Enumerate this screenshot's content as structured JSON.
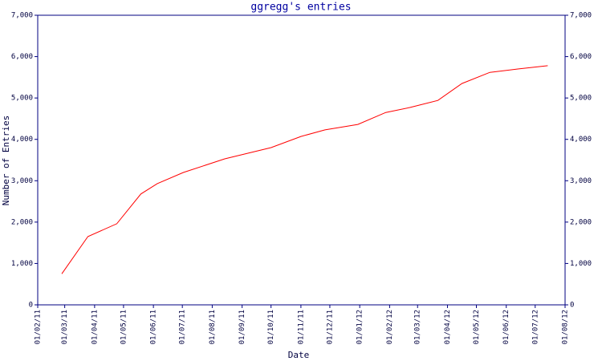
{
  "chart_data": {
    "type": "line",
    "title": "ggregg's entries",
    "x_label": "Date",
    "y_label": "Number of Entries",
    "x": [
      "2011-02-26",
      "2011-03-25",
      "2011-04-24",
      "2011-05-19",
      "2011-06-05",
      "2011-07-02",
      "2011-08-14",
      "2011-10-01",
      "2011-11-01",
      "2011-11-26",
      "2011-12-30",
      "2012-01-28",
      "2012-02-22",
      "2012-03-22",
      "2012-04-16",
      "2012-05-15",
      "2012-06-13",
      "2012-07-14"
    ],
    "series": [
      {
        "color": "#ff0000",
        "values": [
          750,
          1650,
          1960,
          2680,
          2930,
          3200,
          3530,
          3800,
          4070,
          4230,
          4360,
          4650,
          4770,
          4940,
          5350,
          5620,
          5700,
          5780
        ]
      }
    ],
    "xlim": [
      "2011-02-01",
      "2012-08-01"
    ],
    "xticks": [
      {
        "value": "2011-02-01",
        "label": "01/02/11"
      },
      {
        "value": "2011-03-01",
        "label": "01/03/11"
      },
      {
        "value": "2011-04-01",
        "label": "01/04/11"
      },
      {
        "value": "2011-05-01",
        "label": "01/05/11"
      },
      {
        "value": "2011-06-01",
        "label": "01/06/11"
      },
      {
        "value": "2011-07-01",
        "label": "01/07/11"
      },
      {
        "value": "2011-08-01",
        "label": "01/08/11"
      },
      {
        "value": "2011-09-01",
        "label": "01/09/11"
      },
      {
        "value": "2011-10-01",
        "label": "01/10/11"
      },
      {
        "value": "2011-11-01",
        "label": "01/11/11"
      },
      {
        "value": "2011-12-01",
        "label": "01/12/11"
      },
      {
        "value": "2012-01-01",
        "label": "01/01/12"
      },
      {
        "value": "2012-02-01",
        "label": "01/02/12"
      },
      {
        "value": "2012-03-01",
        "label": "01/03/12"
      },
      {
        "value": "2012-04-01",
        "label": "01/04/12"
      },
      {
        "value": "2012-05-01",
        "label": "01/05/12"
      },
      {
        "value": "2012-06-01",
        "label": "01/06/12"
      },
      {
        "value": "2012-07-01",
        "label": "01/07/12"
      },
      {
        "value": "2012-08-01",
        "label": "01/08/12"
      }
    ],
    "ylim": [
      0,
      7000
    ],
    "yticks": [
      0,
      {
        "value": 1000,
        "label": "1,000"
      },
      {
        "value": 2000,
        "label": "2,000"
      },
      {
        "value": 3000,
        "label": "3,000"
      },
      {
        "value": 4000,
        "label": "4,000"
      },
      {
        "value": 5000,
        "label": "5,000"
      },
      {
        "value": 6000,
        "label": "6,000"
      },
      {
        "value": 7000,
        "label": "7,000"
      }
    ],
    "y2lim": [
      0,
      7000
    ],
    "y2ticks": [
      0,
      {
        "value": 1000,
        "label": "1,000"
      },
      {
        "value": 2000,
        "label": "2,000"
      },
      {
        "value": 3000,
        "label": "3,000"
      },
      {
        "value": 4000,
        "label": "4,000"
      },
      {
        "value": 5000,
        "label": "5,000"
      },
      {
        "value": 6000,
        "label": "6,000"
      },
      {
        "value": 7000,
        "label": "7,000"
      }
    ]
  }
}
